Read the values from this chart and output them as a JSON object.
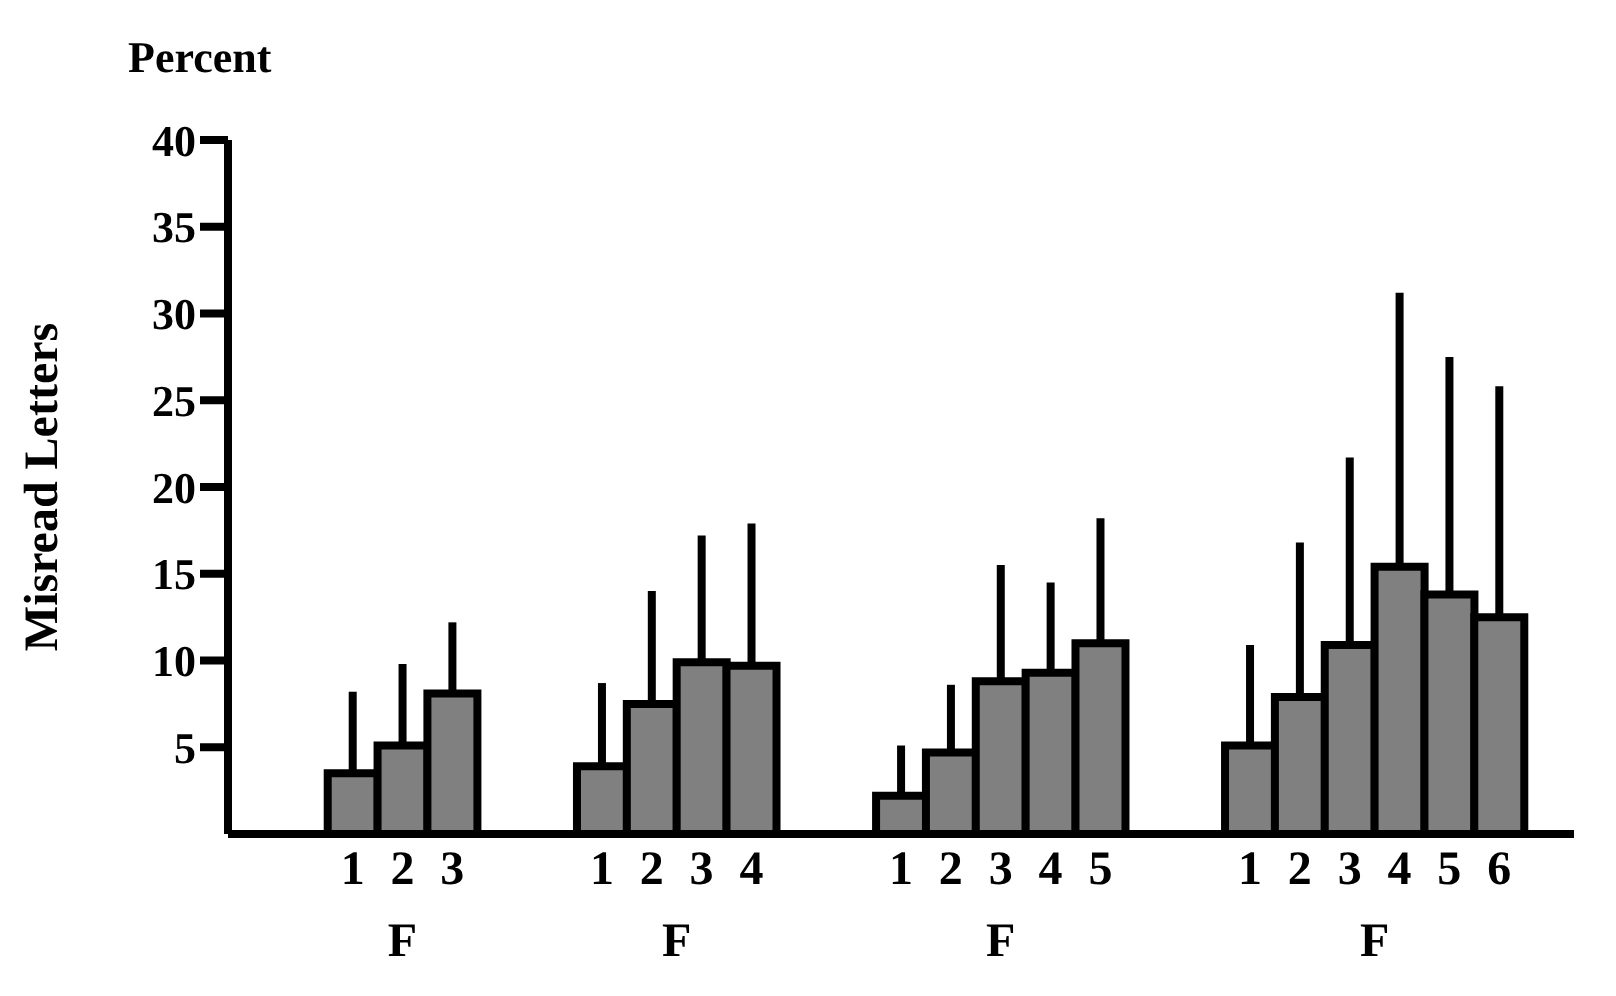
{
  "chart_data": {
    "type": "bar",
    "title": "Percent",
    "ylabel": "Misread Letters",
    "categories": [
      null,
      null,
      "1",
      "2",
      "3",
      null,
      null,
      "1",
      "2",
      "3",
      "4",
      null,
      null,
      "1",
      "2",
      "3",
      "4",
      "5",
      null,
      null,
      "1",
      "2",
      "3",
      "4",
      "5",
      "6",
      null
    ],
    "values": [
      null,
      null,
      3.5,
      5.1,
      8.1,
      null,
      null,
      3.9,
      7.5,
      9.9,
      9.7,
      null,
      null,
      2.2,
      4.7,
      8.8,
      9.3,
      11.0,
      null,
      null,
      5.1,
      7.9,
      10.9,
      15.4,
      13.8,
      12.5,
      null
    ],
    "errors": [
      null,
      null,
      [
        3.5,
        8.2
      ],
      [
        5.1,
        9.8
      ],
      [
        8.1,
        12.2
      ],
      null,
      null,
      [
        3.9,
        8.7
      ],
      [
        7.5,
        14.0
      ],
      [
        9.9,
        17.2
      ],
      [
        9.7,
        17.9
      ],
      null,
      null,
      [
        2.2,
        5.1
      ],
      [
        4.7,
        8.6
      ],
      [
        8.8,
        15.5
      ],
      [
        9.3,
        14.5
      ],
      [
        11.0,
        18.2
      ],
      null,
      null,
      [
        5.1,
        10.9
      ],
      [
        7.9,
        16.8
      ],
      [
        10.9,
        21.7
      ],
      [
        15.4,
        31.2
      ],
      [
        13.8,
        27.5
      ],
      [
        12.5,
        25.8
      ],
      null
    ],
    "color": "#808080",
    "ylim": [
      0,
      40
    ],
    "yticks": [
      5,
      10,
      15,
      20,
      25,
      30,
      35,
      40
    ],
    "annotations": [
      "F",
      "F",
      "F",
      "F"
    ]
  }
}
